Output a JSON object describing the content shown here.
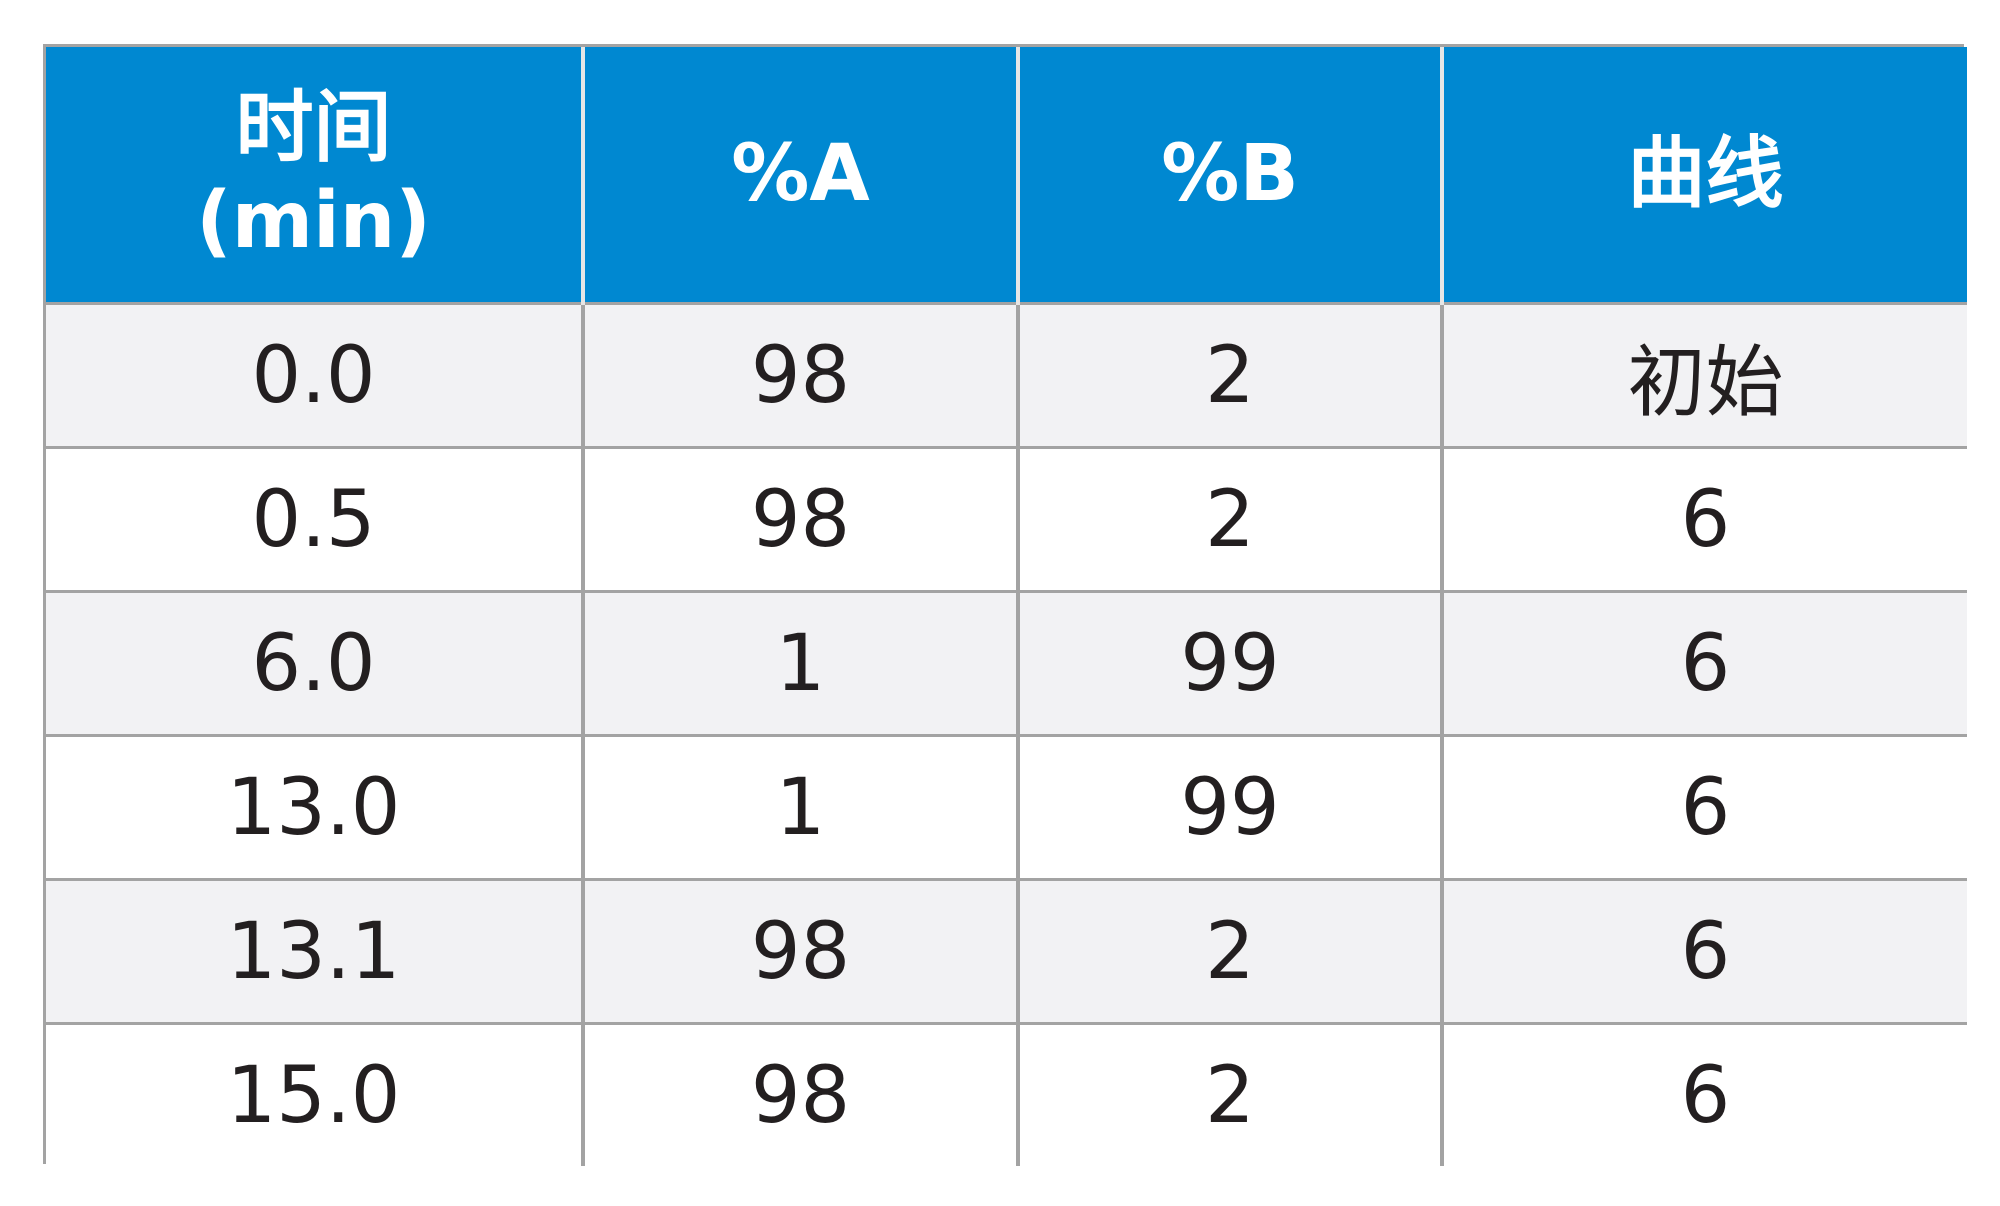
{
  "table": {
    "headers": [
      {
        "lines": [
          "时间",
          "(min)"
        ]
      },
      {
        "lines": [
          "%A"
        ]
      },
      {
        "lines": [
          "%B"
        ]
      },
      {
        "lines": [
          "曲线"
        ]
      }
    ],
    "rows": [
      [
        "0.0",
        "98",
        "2",
        "初始"
      ],
      [
        "0.5",
        "98",
        "2",
        "6"
      ],
      [
        "6.0",
        "1",
        "99",
        "6"
      ],
      [
        "13.0",
        "1",
        "99",
        "6"
      ],
      [
        "13.1",
        "98",
        "2",
        "6"
      ],
      [
        "15.0",
        "98",
        "2",
        "6"
      ]
    ],
    "colors": {
      "header_bg": "#0088d1",
      "header_text": "#ffffff",
      "row_shaded": "#f2f2f4",
      "row_plain": "#ffffff",
      "grid": "#a3a3a3",
      "cell_text": "#231f20"
    }
  }
}
